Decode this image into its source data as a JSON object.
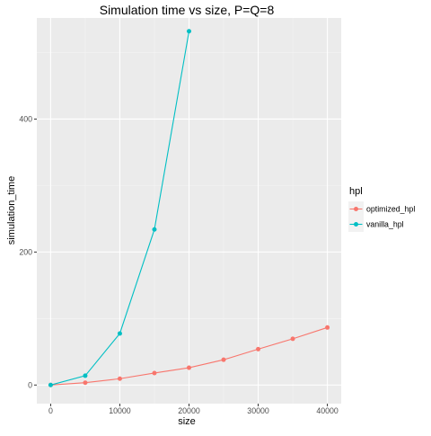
{
  "chart_data": {
    "type": "line",
    "title": "Simulation time vs size, P=Q=8",
    "xlabel": "size",
    "ylabel": "simulation_time",
    "xlim": [
      -2000,
      42000
    ],
    "ylim": [
      -28,
      552
    ],
    "x_ticks": [
      0,
      10000,
      20000,
      30000,
      40000
    ],
    "x_tick_labels": [
      "0",
      "10000",
      "20000",
      "30000",
      "40000"
    ],
    "y_ticks": [
      0,
      200,
      400
    ],
    "y_tick_labels": [
      "0",
      "200",
      "400"
    ],
    "grid": true,
    "legend": {
      "title": "hpl",
      "position": "right",
      "entries": [
        "optimized_hpl",
        "vanilla_hpl"
      ]
    },
    "series": [
      {
        "name": "optimized_hpl",
        "color": "#F8766D",
        "x": [
          0,
          5000,
          10000,
          15000,
          20000,
          25000,
          30000,
          35000,
          40000
        ],
        "y": [
          0,
          3.5,
          9.5,
          18,
          26,
          38,
          54,
          69.5,
          86.5
        ]
      },
      {
        "name": "vanilla_hpl",
        "color": "#00BFC4",
        "x": [
          0,
          5000,
          10000,
          15000,
          20000
        ],
        "y": [
          0,
          14,
          77.5,
          234,
          532
        ]
      }
    ]
  }
}
